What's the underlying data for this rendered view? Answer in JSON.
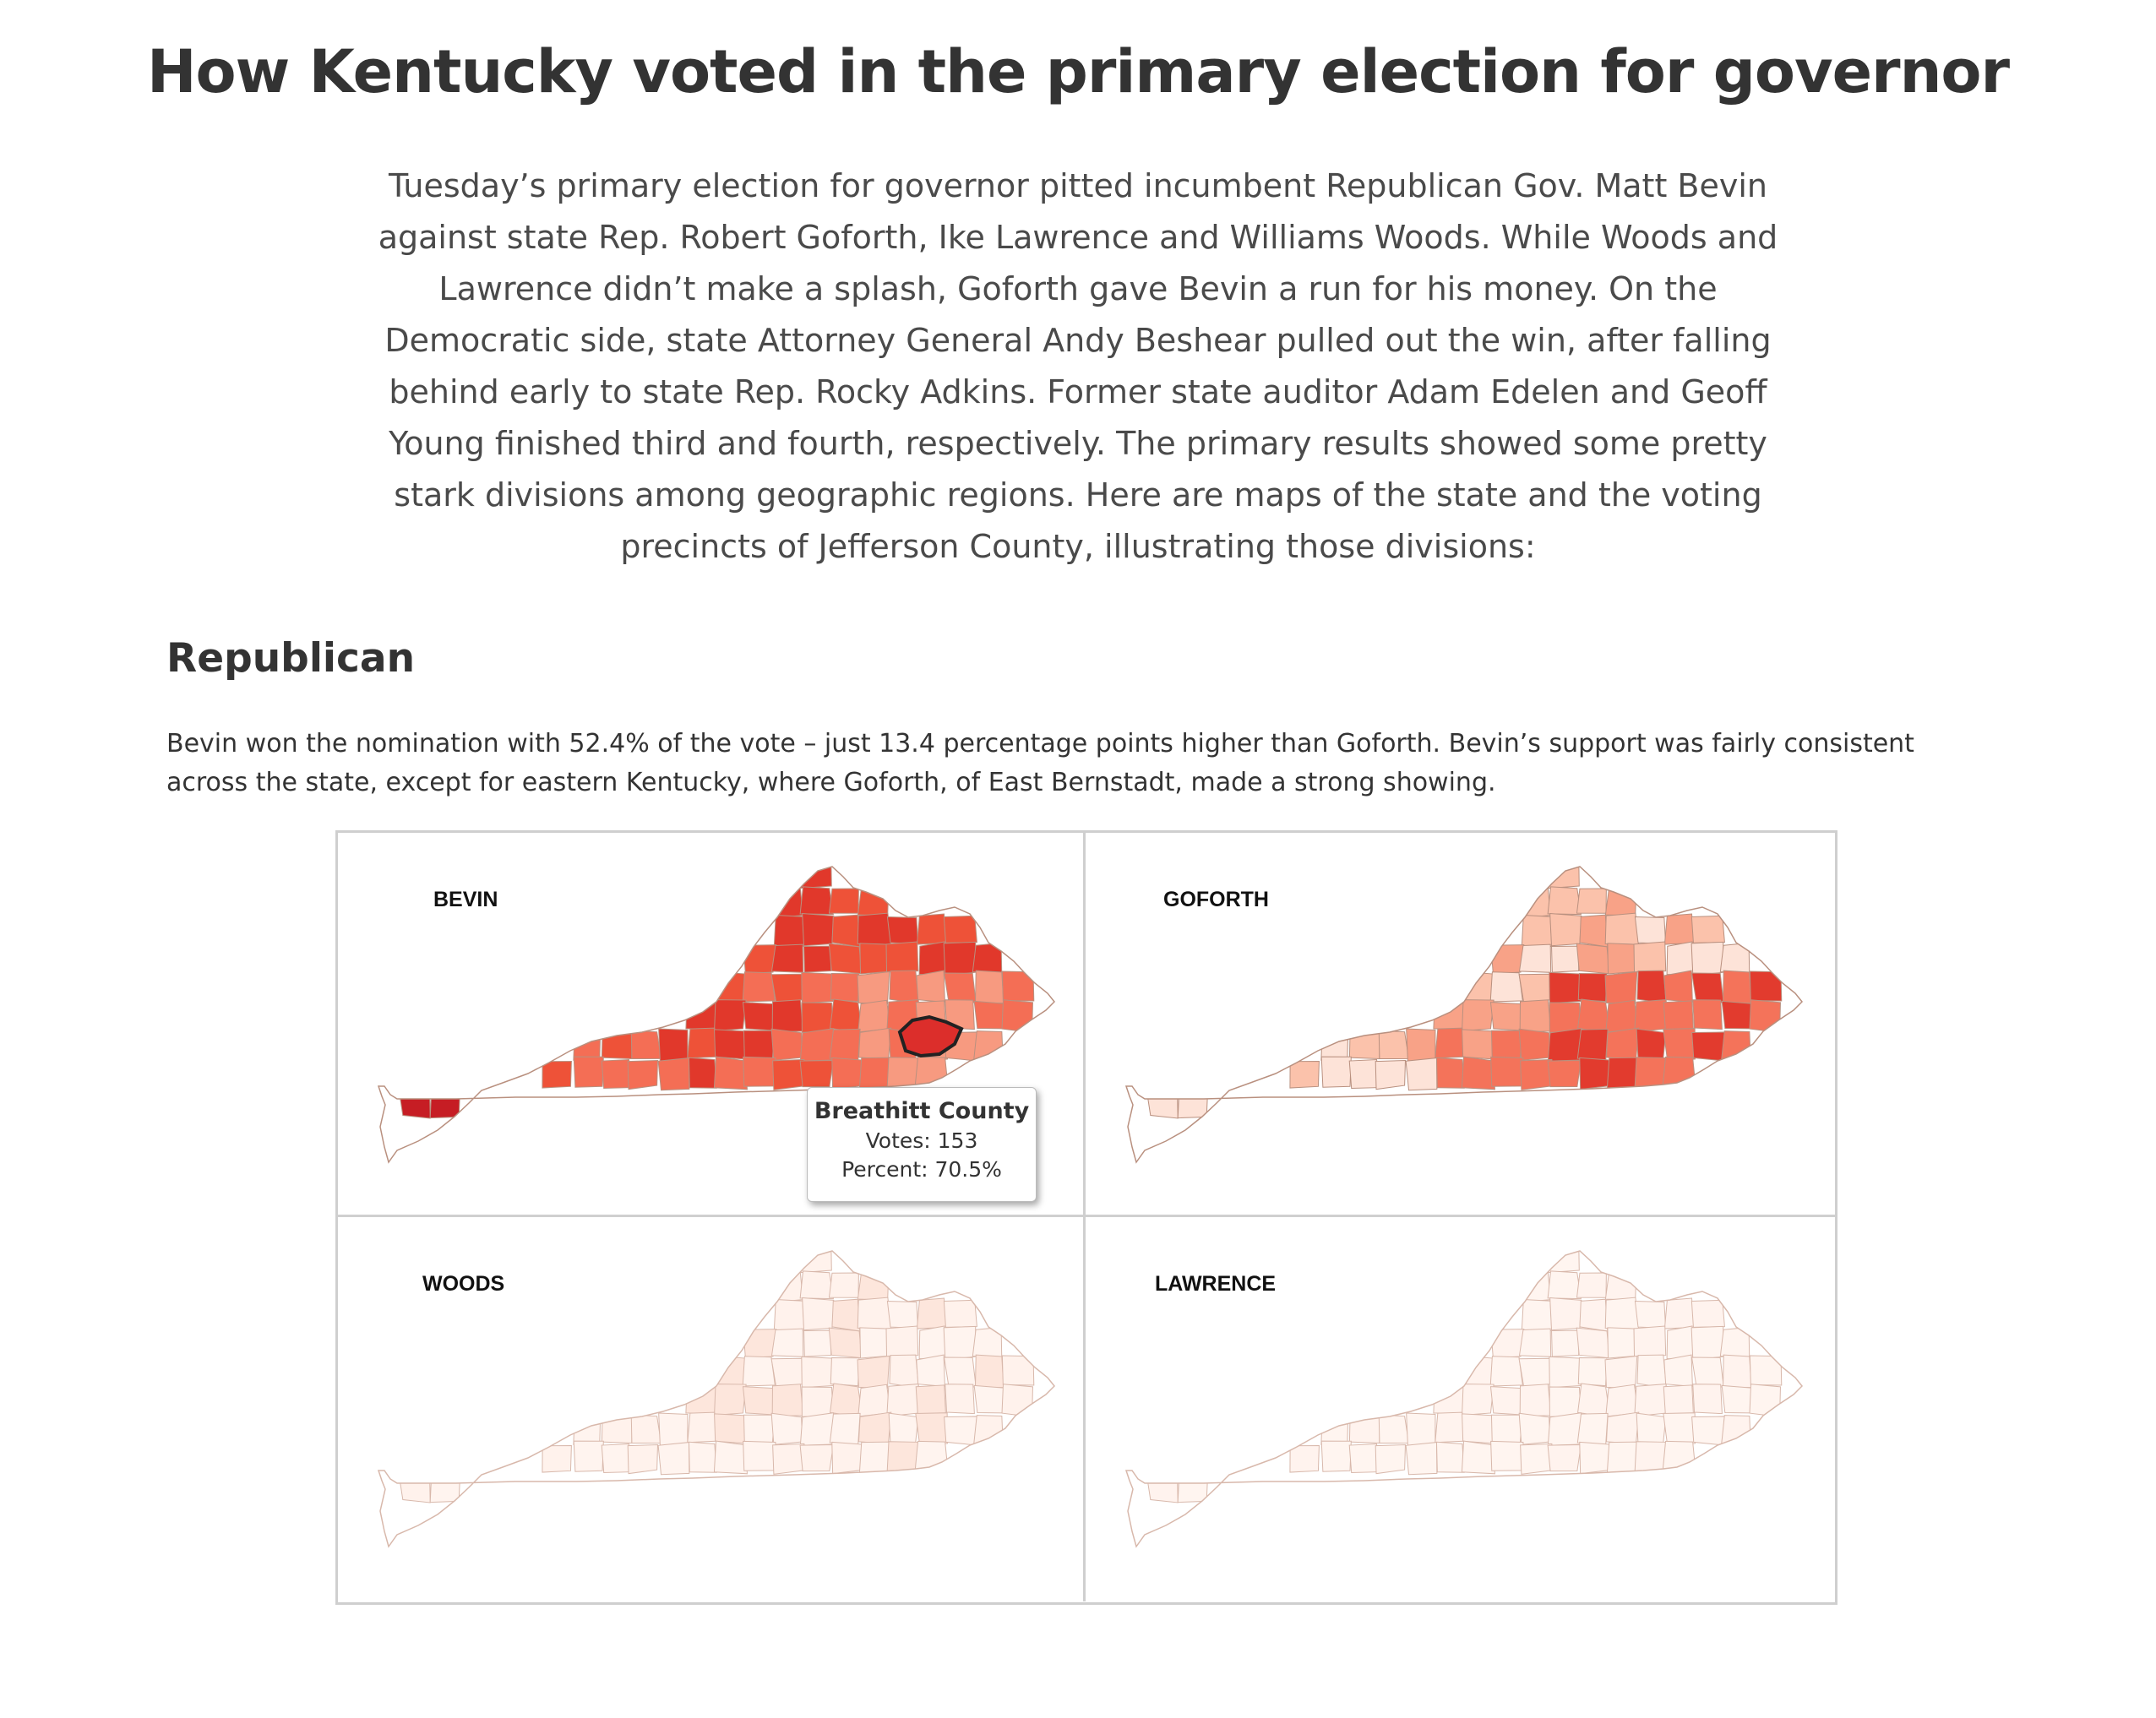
{
  "title": "How Kentucky voted in the primary election for governor",
  "intro": "Tuesday’s primary election for governor pitted incumbent Republican Gov. Matt Bevin against state Rep. Robert Goforth, Ike Lawrence and Williams Woods. While Woods and Lawrence didn’t make a splash, Goforth gave Bevin a run for his money. On the Democratic side, state Attorney General Andy Beshear pulled out the win, after falling behind early to state Rep. Rocky Adkins. Former state auditor Adam Edelen and Geoff Young finished third and fourth, respectively. The primary results showed some pretty stark divisions among geographic regions. Here are maps of the state and the voting precincts of Jefferson County, illustrating those divisions:",
  "section": {
    "heading": "Republican",
    "text": "Bevin won the nomination with 52.4% of the vote – just 13.4 percentage points higher than Goforth. Bevin’s support was fairly consistent across the state, except for eastern Kentucky, where Goforth, of East Bernstadt, made a strong showing."
  },
  "maps": [
    {
      "label": "BEVIN",
      "palette": [
        "#f79a80",
        "#f46e55",
        "#ee5238",
        "#e1382b",
        "#c61d24"
      ]
    },
    {
      "label": "GOFORTH",
      "palette": [
        "#fde3d8",
        "#fbc2ab",
        "#f8a287",
        "#f4735a",
        "#e23b2e"
      ]
    },
    {
      "label": "WOODS",
      "palette": [
        "#fff4ef",
        "#fff2ec",
        "#fde6dc"
      ]
    },
    {
      "label": "LAWRENCE",
      "palette": [
        "#fff5f0",
        "#fff3ee"
      ]
    }
  ],
  "tooltip": {
    "county": "Breathitt County",
    "votes": "Votes: 153",
    "percent": "Percent: 70.5%"
  },
  "colors": {
    "border": "#cfcfcf",
    "county_stroke_dark": "#c9a79a",
    "highlight_stroke": "#222222"
  }
}
